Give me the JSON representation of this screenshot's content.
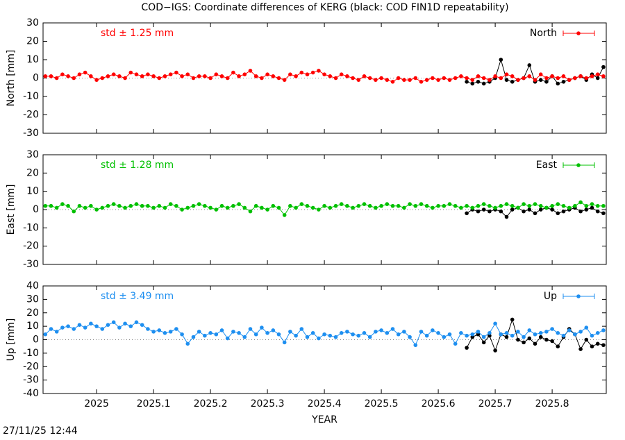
{
  "page": {
    "title": "COD−IGS: Coordinate differences of KERG (black: COD FIN1D repeatability)",
    "timestamp": "27/11/25 12:44"
  },
  "chart_data": [
    {
      "type": "line",
      "ylabel": "North [mm]",
      "annotation": "std ± 1.25 mm",
      "legend": "top right",
      "zero_line": true,
      "xlim": [
        2024.906,
        2025.895
      ],
      "xticks": [
        2025,
        2025.1,
        2025.2,
        2025.3,
        2025.4,
        2025.5,
        2025.6,
        2025.7,
        2025.8
      ],
      "ylim": [
        -30,
        30
      ],
      "yticks": [
        -30,
        -20,
        -10,
        0,
        10,
        20,
        30
      ],
      "x": [
        2024.91,
        2024.92,
        2024.93,
        2024.94,
        2024.95,
        2024.96,
        2024.97,
        2024.98,
        2024.99,
        2025,
        2025.01,
        2025.02,
        2025.03,
        2025.04,
        2025.05,
        2025.06,
        2025.07,
        2025.08,
        2025.09,
        2025.1,
        2025.11,
        2025.12,
        2025.13,
        2025.14,
        2025.15,
        2025.16,
        2025.17,
        2025.18,
        2025.19,
        2025.2,
        2025.21,
        2025.22,
        2025.23,
        2025.24,
        2025.25,
        2025.26,
        2025.27,
        2025.28,
        2025.29,
        2025.3,
        2025.31,
        2025.32,
        2025.33,
        2025.34,
        2025.35,
        2025.36,
        2025.37,
        2025.38,
        2025.39,
        2025.4,
        2025.41,
        2025.42,
        2025.43,
        2025.44,
        2025.45,
        2025.46,
        2025.47,
        2025.48,
        2025.49,
        2025.5,
        2025.51,
        2025.52,
        2025.53,
        2025.54,
        2025.55,
        2025.56,
        2025.57,
        2025.58,
        2025.59,
        2025.6,
        2025.61,
        2025.62,
        2025.63,
        2025.64,
        2025.65,
        2025.66,
        2025.67,
        2025.68,
        2025.69,
        2025.7,
        2025.71,
        2025.72,
        2025.73,
        2025.74,
        2025.75,
        2025.76,
        2025.77,
        2025.78,
        2025.79,
        2025.8,
        2025.81,
        2025.82,
        2025.83,
        2025.84,
        2025.85,
        2025.86,
        2025.87,
        2025.88,
        2025.89
      ],
      "series": [
        {
          "name": "North",
          "color": "#ff0000",
          "values": [
            1,
            1,
            0,
            2,
            1,
            0,
            2,
            3,
            1,
            -1,
            0,
            1,
            2,
            1,
            0,
            3,
            2,
            1,
            2,
            1,
            0,
            1,
            2,
            3,
            1,
            2,
            0,
            1,
            1,
            0,
            2,
            1,
            0,
            3,
            1,
            2,
            4,
            1,
            0,
            2,
            1,
            0,
            -1,
            2,
            1,
            3,
            2,
            3,
            4,
            2,
            1,
            0,
            2,
            1,
            0,
            -1,
            1,
            0,
            -1,
            0,
            -1,
            -2,
            0,
            -1,
            -1,
            0,
            -2,
            -1,
            0,
            -1,
            0,
            -1,
            0,
            1,
            0,
            -1,
            1,
            0,
            -1,
            1,
            0,
            2,
            1,
            -1,
            0,
            1,
            -1,
            2,
            0,
            1,
            0,
            1,
            -1,
            0,
            1,
            0,
            1,
            2,
            1
          ]
        },
        {
          "color": "#000000",
          "values": [
            null,
            null,
            null,
            null,
            null,
            null,
            null,
            null,
            null,
            null,
            null,
            null,
            null,
            null,
            null,
            null,
            null,
            null,
            null,
            null,
            null,
            null,
            null,
            null,
            null,
            null,
            null,
            null,
            null,
            null,
            null,
            null,
            null,
            null,
            null,
            null,
            null,
            null,
            null,
            null,
            null,
            null,
            null,
            null,
            null,
            null,
            null,
            null,
            null,
            null,
            null,
            null,
            null,
            null,
            null,
            null,
            null,
            null,
            null,
            null,
            null,
            null,
            null,
            null,
            null,
            null,
            null,
            null,
            null,
            null,
            null,
            null,
            null,
            null,
            -2,
            -3,
            -2,
            -3,
            -2,
            0,
            10,
            -1,
            -2,
            -1,
            0,
            7,
            -2,
            -1,
            -2,
            1,
            -3,
            -2,
            -1,
            0,
            1,
            -1,
            2,
            0,
            6
          ]
        }
      ]
    },
    {
      "type": "line",
      "ylabel": "East [mm]",
      "annotation": "std ± 1.28 mm",
      "legend": "top right",
      "zero_line": true,
      "xlim": [
        2024.906,
        2025.895
      ],
      "xticks": [
        2025,
        2025.1,
        2025.2,
        2025.3,
        2025.4,
        2025.5,
        2025.6,
        2025.7,
        2025.8
      ],
      "ylim": [
        -30,
        30
      ],
      "yticks": [
        -30,
        -20,
        -10,
        0,
        10,
        20,
        30
      ],
      "x": [
        2024.91,
        2024.92,
        2024.93,
        2024.94,
        2024.95,
        2024.96,
        2024.97,
        2024.98,
        2024.99,
        2025,
        2025.01,
        2025.02,
        2025.03,
        2025.04,
        2025.05,
        2025.06,
        2025.07,
        2025.08,
        2025.09,
        2025.1,
        2025.11,
        2025.12,
        2025.13,
        2025.14,
        2025.15,
        2025.16,
        2025.17,
        2025.18,
        2025.19,
        2025.2,
        2025.21,
        2025.22,
        2025.23,
        2025.24,
        2025.25,
        2025.26,
        2025.27,
        2025.28,
        2025.29,
        2025.3,
        2025.31,
        2025.32,
        2025.33,
        2025.34,
        2025.35,
        2025.36,
        2025.37,
        2025.38,
        2025.39,
        2025.4,
        2025.41,
        2025.42,
        2025.43,
        2025.44,
        2025.45,
        2025.46,
        2025.47,
        2025.48,
        2025.49,
        2025.5,
        2025.51,
        2025.52,
        2025.53,
        2025.54,
        2025.55,
        2025.56,
        2025.57,
        2025.58,
        2025.59,
        2025.6,
        2025.61,
        2025.62,
        2025.63,
        2025.64,
        2025.65,
        2025.66,
        2025.67,
        2025.68,
        2025.69,
        2025.7,
        2025.71,
        2025.72,
        2025.73,
        2025.74,
        2025.75,
        2025.76,
        2025.77,
        2025.78,
        2025.79,
        2025.8,
        2025.81,
        2025.82,
        2025.83,
        2025.84,
        2025.85,
        2025.86,
        2025.87,
        2025.88,
        2025.89
      ],
      "series": [
        {
          "name": "East",
          "color": "#00c000",
          "values": [
            2,
            2,
            1,
            3,
            2,
            -1,
            2,
            1,
            2,
            0,
            1,
            2,
            3,
            2,
            1,
            2,
            3,
            2,
            2,
            1,
            2,
            1,
            3,
            2,
            0,
            1,
            2,
            3,
            2,
            1,
            0,
            2,
            1,
            2,
            3,
            1,
            -1,
            2,
            1,
            0,
            2,
            1,
            -3,
            2,
            1,
            3,
            2,
            1,
            0,
            2,
            1,
            2,
            3,
            2,
            1,
            2,
            3,
            2,
            1,
            2,
            3,
            2,
            2,
            1,
            3,
            2,
            3,
            2,
            1,
            2,
            2,
            3,
            2,
            1,
            2,
            1,
            2,
            3,
            2,
            1,
            2,
            3,
            2,
            1,
            3,
            2,
            3,
            2,
            1,
            2,
            3,
            2,
            1,
            2,
            4,
            2,
            3,
            2,
            2
          ]
        },
        {
          "color": "#000000",
          "values": [
            null,
            null,
            null,
            null,
            null,
            null,
            null,
            null,
            null,
            null,
            null,
            null,
            null,
            null,
            null,
            null,
            null,
            null,
            null,
            null,
            null,
            null,
            null,
            null,
            null,
            null,
            null,
            null,
            null,
            null,
            null,
            null,
            null,
            null,
            null,
            null,
            null,
            null,
            null,
            null,
            null,
            null,
            null,
            null,
            null,
            null,
            null,
            null,
            null,
            null,
            null,
            null,
            null,
            null,
            null,
            null,
            null,
            null,
            null,
            null,
            null,
            null,
            null,
            null,
            null,
            null,
            null,
            null,
            null,
            null,
            null,
            null,
            null,
            null,
            -2,
            0,
            -1,
            0,
            -1,
            0,
            -1,
            -4,
            0,
            1,
            -1,
            0,
            -2,
            0,
            1,
            0,
            -2,
            -1,
            0,
            1,
            -1,
            0,
            1,
            -1,
            -2
          ]
        }
      ]
    },
    {
      "type": "line",
      "ylabel": "Up [mm]",
      "xlabel": "YEAR",
      "annotation": "std ± 3.49 mm",
      "legend": "top right",
      "zero_line": true,
      "xlim": [
        2024.906,
        2025.895
      ],
      "xticks": [
        2025,
        2025.1,
        2025.2,
        2025.3,
        2025.4,
        2025.5,
        2025.6,
        2025.7,
        2025.8
      ],
      "ylim": [
        -40,
        40
      ],
      "yticks": [
        -40,
        -30,
        -20,
        -10,
        0,
        10,
        20,
        30,
        40
      ],
      "x": [
        2024.91,
        2024.92,
        2024.93,
        2024.94,
        2024.95,
        2024.96,
        2024.97,
        2024.98,
        2024.99,
        2025,
        2025.01,
        2025.02,
        2025.03,
        2025.04,
        2025.05,
        2025.06,
        2025.07,
        2025.08,
        2025.09,
        2025.1,
        2025.11,
        2025.12,
        2025.13,
        2025.14,
        2025.15,
        2025.16,
        2025.17,
        2025.18,
        2025.19,
        2025.2,
        2025.21,
        2025.22,
        2025.23,
        2025.24,
        2025.25,
        2025.26,
        2025.27,
        2025.28,
        2025.29,
        2025.3,
        2025.31,
        2025.32,
        2025.33,
        2025.34,
        2025.35,
        2025.36,
        2025.37,
        2025.38,
        2025.39,
        2025.4,
        2025.41,
        2025.42,
        2025.43,
        2025.44,
        2025.45,
        2025.46,
        2025.47,
        2025.48,
        2025.49,
        2025.5,
        2025.51,
        2025.52,
        2025.53,
        2025.54,
        2025.55,
        2025.56,
        2025.57,
        2025.58,
        2025.59,
        2025.6,
        2025.61,
        2025.62,
        2025.63,
        2025.64,
        2025.65,
        2025.66,
        2025.67,
        2025.68,
        2025.69,
        2025.7,
        2025.71,
        2025.72,
        2025.73,
        2025.74,
        2025.75,
        2025.76,
        2025.77,
        2025.78,
        2025.79,
        2025.8,
        2025.81,
        2025.82,
        2025.83,
        2025.84,
        2025.85,
        2025.86,
        2025.87,
        2025.88,
        2025.89
      ],
      "series": [
        {
          "name": "Up",
          "color": "#1e8ff0",
          "values": [
            4,
            8,
            6,
            9,
            10,
            8,
            11,
            9,
            12,
            10,
            8,
            11,
            13,
            9,
            12,
            10,
            13,
            11,
            8,
            6,
            7,
            5,
            6,
            8,
            4,
            -3,
            2,
            6,
            3,
            5,
            4,
            7,
            1,
            6,
            5,
            2,
            8,
            4,
            9,
            5,
            7,
            4,
            -2,
            6,
            3,
            8,
            2,
            5,
            1,
            4,
            3,
            2,
            5,
            6,
            4,
            3,
            5,
            2,
            6,
            7,
            5,
            8,
            4,
            6,
            2,
            -4,
            6,
            3,
            7,
            5,
            2,
            4,
            -3,
            5,
            3,
            4,
            6,
            2,
            5,
            12,
            4,
            5,
            3,
            6,
            2,
            7,
            4,
            5,
            6,
            8,
            5,
            3,
            7,
            4,
            6,
            9,
            3,
            5,
            7
          ]
        },
        {
          "color": "#000000",
          "values": [
            null,
            null,
            null,
            null,
            null,
            null,
            null,
            null,
            null,
            null,
            null,
            null,
            null,
            null,
            null,
            null,
            null,
            null,
            null,
            null,
            null,
            null,
            null,
            null,
            null,
            null,
            null,
            null,
            null,
            null,
            null,
            null,
            null,
            null,
            null,
            null,
            null,
            null,
            null,
            null,
            null,
            null,
            null,
            null,
            null,
            null,
            null,
            null,
            null,
            null,
            null,
            null,
            null,
            null,
            null,
            null,
            null,
            null,
            null,
            null,
            null,
            null,
            null,
            null,
            null,
            null,
            null,
            null,
            null,
            null,
            null,
            null,
            null,
            null,
            -6,
            2,
            4,
            -2,
            3,
            -8,
            4,
            2,
            15,
            0,
            -2,
            1,
            -3,
            2,
            0,
            -1,
            -5,
            2,
            8,
            4,
            -7,
            0,
            -5,
            -3,
            -4
          ]
        }
      ]
    }
  ]
}
